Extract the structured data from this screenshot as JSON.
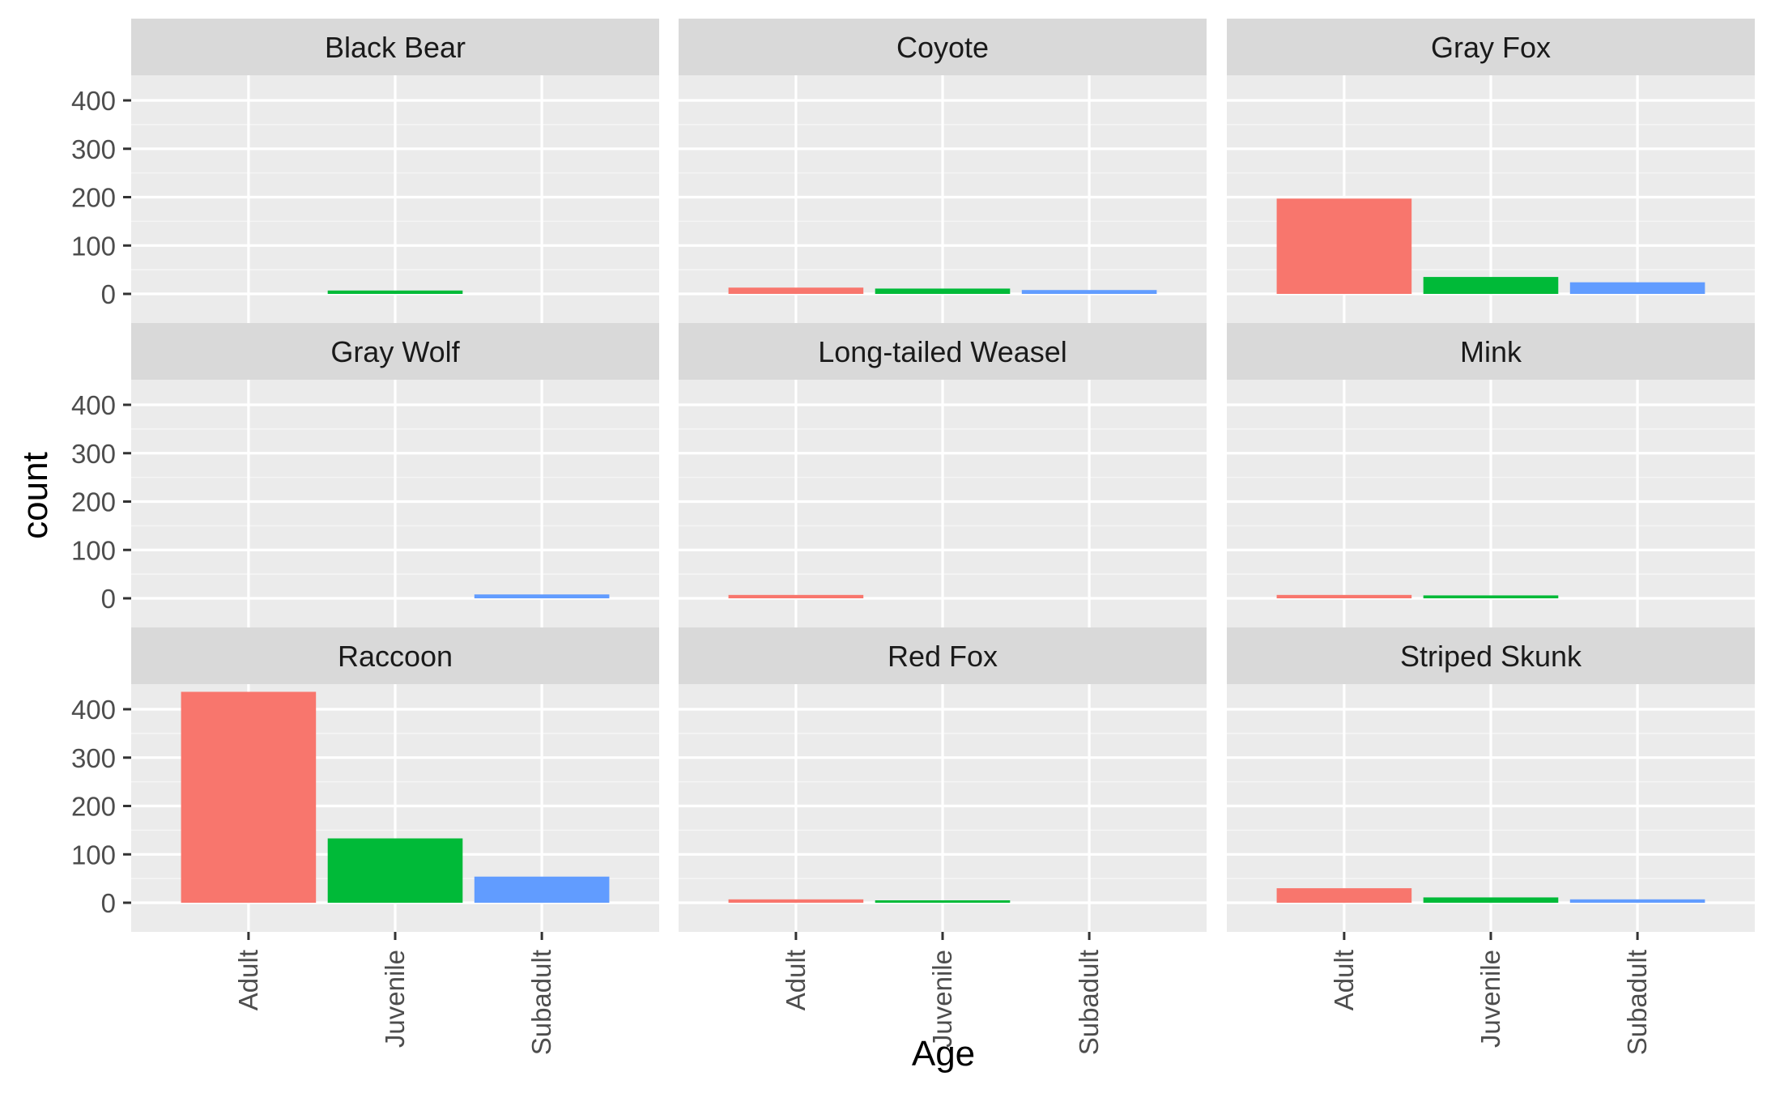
{
  "chart_data": {
    "type": "bar",
    "layout": "facet_wrap",
    "facet_columns": 3,
    "xlabel": "Age",
    "ylabel": "count",
    "categories": [
      "Adult",
      "Juvenile",
      "Subadult"
    ],
    "category_colors": [
      "#F8766D",
      "#00BA38",
      "#619CFF"
    ],
    "ylim": [
      0,
      450
    ],
    "y_ticks": [
      0,
      100,
      200,
      300,
      400
    ],
    "y_tick_labels": [
      "0",
      "100",
      "200",
      "300",
      "400"
    ],
    "grid": true,
    "legend": "none",
    "facets": [
      {
        "name": "Black Bear",
        "values": [
          0,
          7,
          0
        ]
      },
      {
        "name": "Coyote",
        "values": [
          13,
          11,
          8
        ]
      },
      {
        "name": "Gray Fox",
        "values": [
          197,
          35,
          24
        ]
      },
      {
        "name": "Gray Wolf",
        "values": [
          0,
          0,
          8
        ]
      },
      {
        "name": "Long-tailed Weasel",
        "values": [
          7,
          0,
          0
        ]
      },
      {
        "name": "Mink",
        "values": [
          7,
          6,
          0
        ]
      },
      {
        "name": "Raccoon",
        "values": [
          436,
          133,
          54
        ]
      },
      {
        "name": "Red Fox",
        "values": [
          7,
          5,
          0
        ]
      },
      {
        "name": "Striped Skunk",
        "values": [
          30,
          11,
          7
        ]
      }
    ]
  }
}
